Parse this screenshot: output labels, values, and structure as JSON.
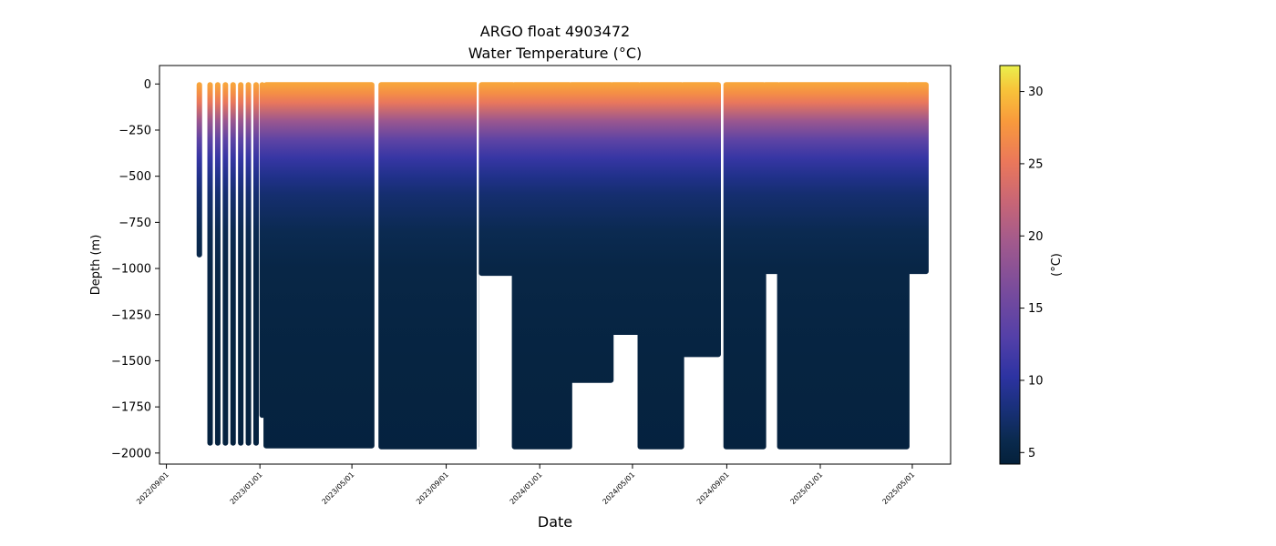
{
  "chart_data": {
    "type": "scatter",
    "title": "ARGO float 4903472",
    "subtitle": "Water Temperature (°C)",
    "xlabel": "Date",
    "ylabel": "Depth (m)",
    "colorbar_label": "(°C)",
    "xlim": [
      "2022-08-23",
      "2025-06-20"
    ],
    "ylim": [
      -2060,
      100
    ],
    "x_ticks": [
      "2022/09/01",
      "2023/01/01",
      "2023/05/01",
      "2023/09/01",
      "2024/01/01",
      "2024/05/01",
      "2024/09/01",
      "2025/01/01",
      "2025/05/01"
    ],
    "y_ticks": [
      0,
      -250,
      -500,
      -750,
      -1000,
      -1250,
      -1500,
      -1750,
      -2000
    ],
    "colorbar_range": [
      4.2,
      31.8
    ],
    "colorbar_ticks": [
      5,
      10,
      15,
      20,
      25,
      30
    ],
    "colormap": "thermal",
    "early_profiles": [
      {
        "date": "2022-10-14",
        "max_depth": -940
      },
      {
        "date": "2022-10-28",
        "max_depth": -1960
      },
      {
        "date": "2022-11-07",
        "max_depth": -1960
      },
      {
        "date": "2022-11-17",
        "max_depth": -1960
      },
      {
        "date": "2022-11-27",
        "max_depth": -1960
      },
      {
        "date": "2022-12-07",
        "max_depth": -1960
      },
      {
        "date": "2022-12-17",
        "max_depth": -1960
      },
      {
        "date": "2022-12-27",
        "max_depth": -1960
      },
      {
        "date": "2023-01-04",
        "max_depth": -1810
      }
    ],
    "dense_segments": [
      {
        "start": "2023-01-08",
        "end": "2023-05-28",
        "max_depth": -1975
      },
      {
        "start": "2023-06-07",
        "end": "2023-10-11",
        "max_depth": -1980
      },
      {
        "start": "2023-10-16",
        "end": "2023-11-28",
        "max_depth": -1040
      },
      {
        "start": "2023-11-28",
        "end": "2024-02-10",
        "max_depth": -1980
      },
      {
        "start": "2024-02-10",
        "end": "2024-04-04",
        "max_depth": -1620
      },
      {
        "start": "2024-04-04",
        "end": "2024-05-10",
        "max_depth": -1360
      },
      {
        "start": "2024-05-10",
        "end": "2024-07-05",
        "max_depth": -1980
      },
      {
        "start": "2024-07-05",
        "end": "2024-08-22",
        "max_depth": -1480
      },
      {
        "start": "2024-08-30",
        "end": "2024-10-20",
        "max_depth": -1980
      },
      {
        "start": "2024-10-20",
        "end": "2024-11-08",
        "max_depth": -1030
      },
      {
        "start": "2024-11-08",
        "end": "2025-04-25",
        "max_depth": -1980
      },
      {
        "start": "2025-04-25",
        "end": "2025-05-20",
        "max_depth": -1030
      }
    ],
    "temperature_profile": [
      {
        "depth": 0,
        "temp": 28.5
      },
      {
        "depth": -50,
        "temp": 27.0
      },
      {
        "depth": -100,
        "temp": 25.0
      },
      {
        "depth": -200,
        "temp": 19.0
      },
      {
        "depth": -300,
        "temp": 14.0
      },
      {
        "depth": -400,
        "temp": 11.0
      },
      {
        "depth": -500,
        "temp": 9.0
      },
      {
        "depth": -600,
        "temp": 7.5
      },
      {
        "depth": -800,
        "temp": 6.0
      },
      {
        "depth": -1000,
        "temp": 5.2
      },
      {
        "depth": -1500,
        "temp": 4.8
      },
      {
        "depth": -2000,
        "temp": 4.6
      }
    ]
  }
}
